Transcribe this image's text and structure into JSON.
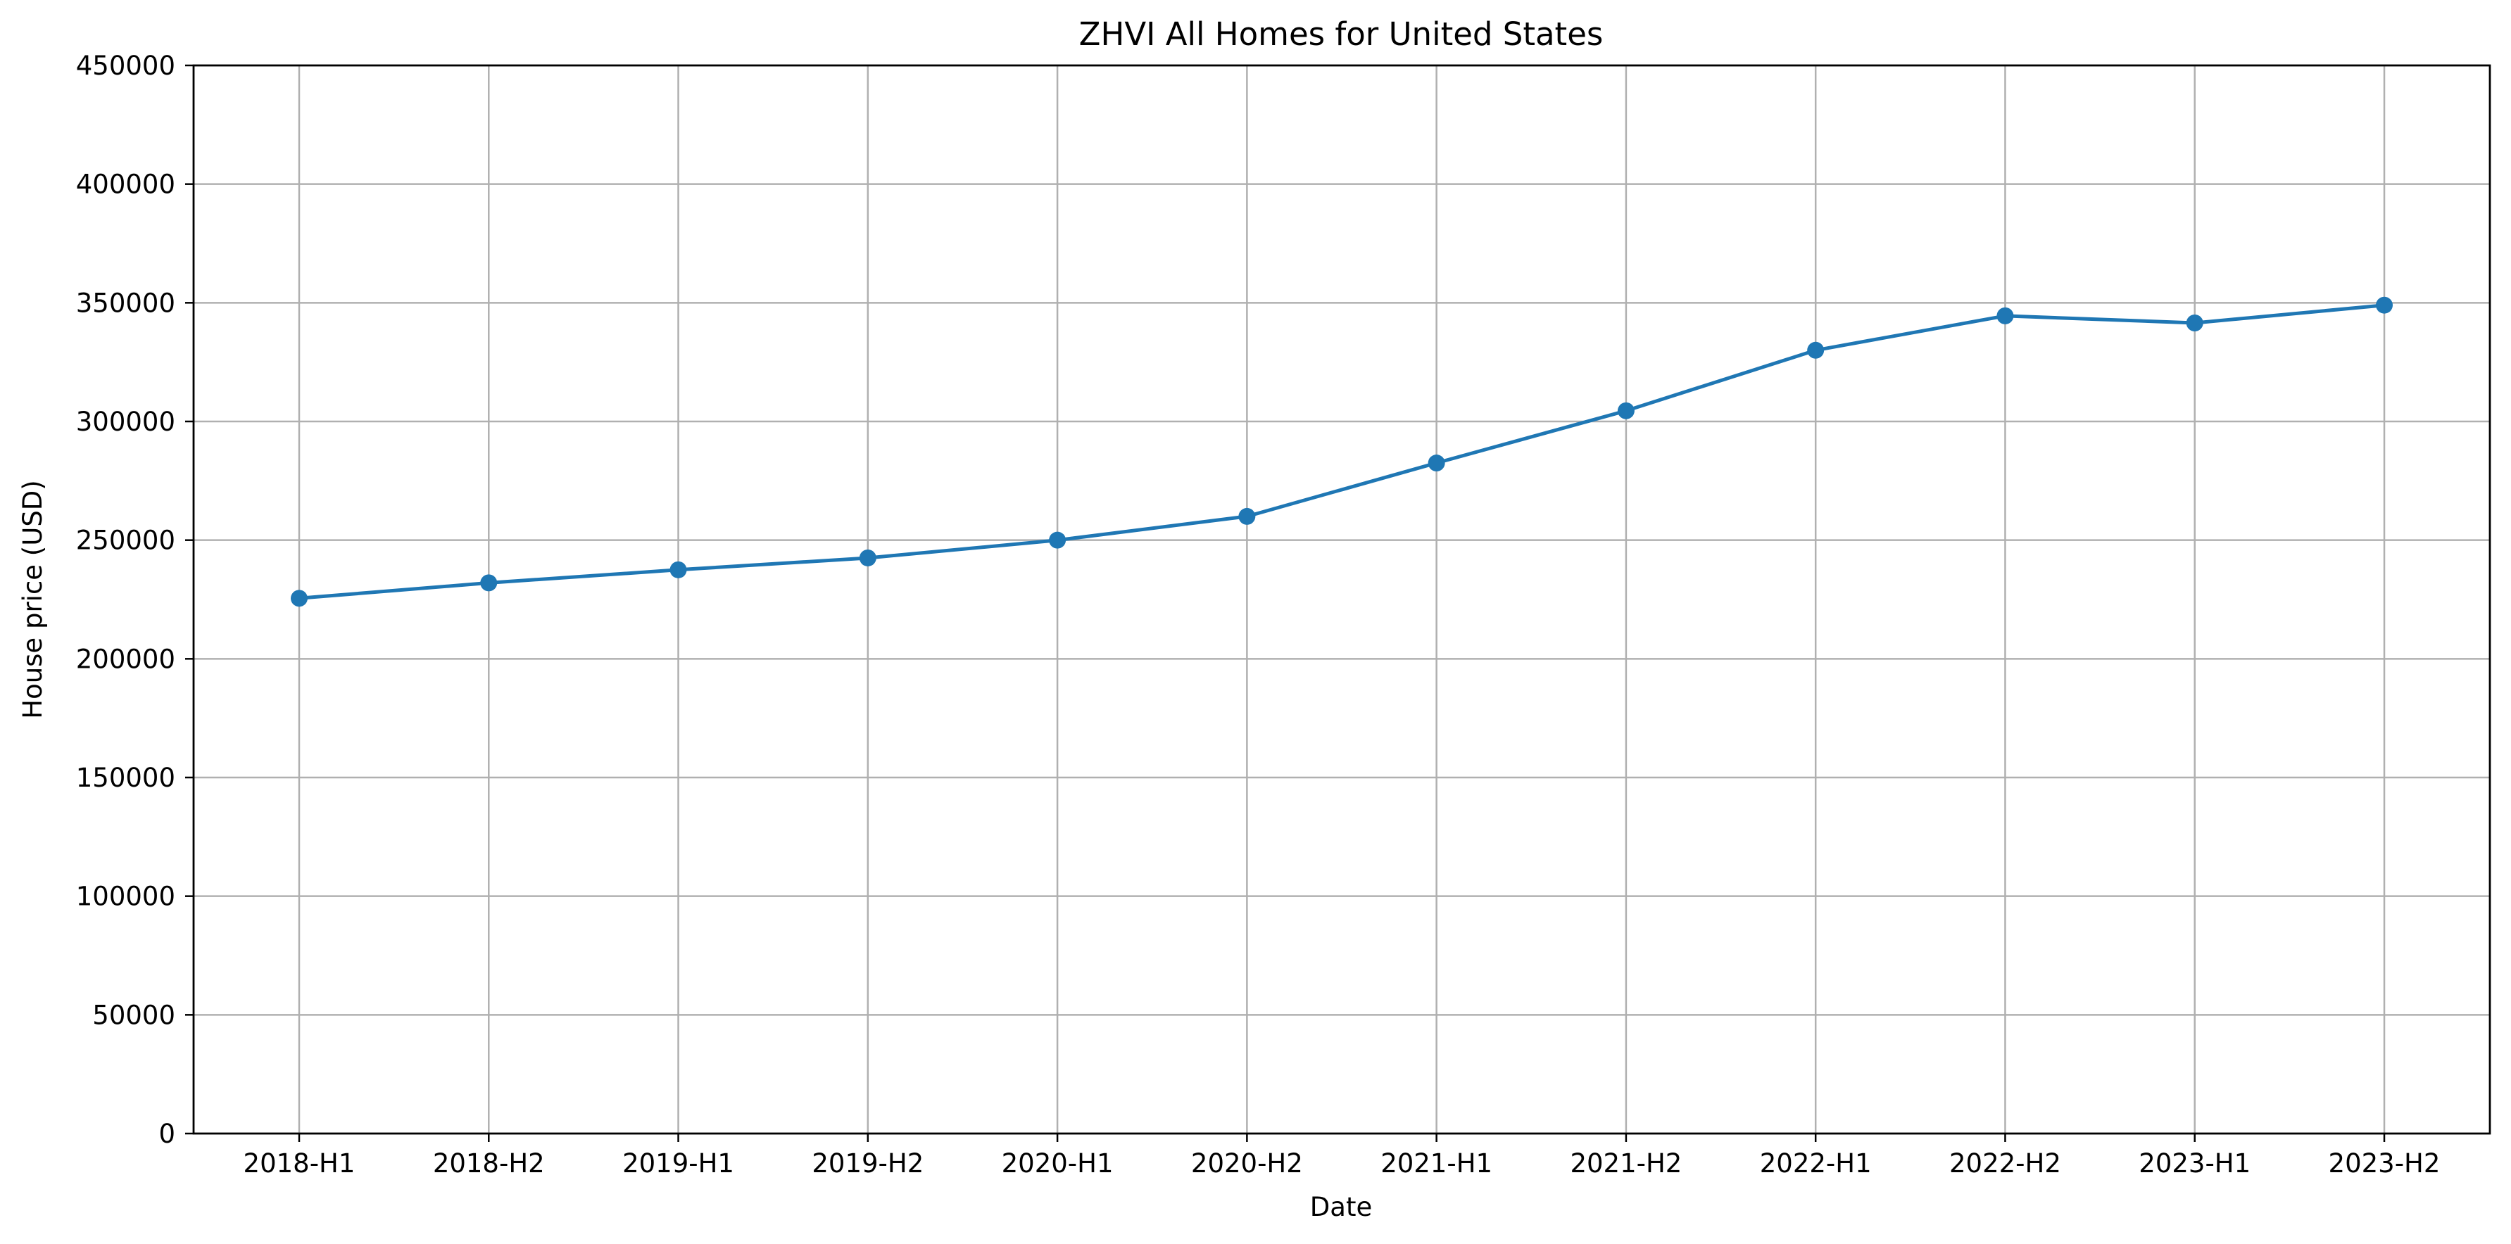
{
  "chart_data": {
    "type": "line",
    "title": "ZHVI All Homes for United States",
    "xlabel": "Date",
    "ylabel": "House price (USD)",
    "categories": [
      "2018-H1",
      "2018-H2",
      "2019-H1",
      "2019-H2",
      "2020-H1",
      "2020-H2",
      "2021-H1",
      "2021-H2",
      "2022-H1",
      "2022-H2",
      "2023-H1",
      "2023-H2"
    ],
    "series": [
      {
        "values": [
          225500,
          232000,
          237500,
          242500,
          250000,
          260000,
          282500,
          304500,
          330000,
          344500,
          341500,
          349000
        ],
        "color": "#1f77b4",
        "marker": "circle"
      }
    ],
    "ylim": [
      0,
      450000
    ],
    "yticks": [
      0,
      50000,
      100000,
      150000,
      200000,
      250000,
      300000,
      350000,
      400000,
      450000
    ],
    "grid": true,
    "legend": false
  }
}
